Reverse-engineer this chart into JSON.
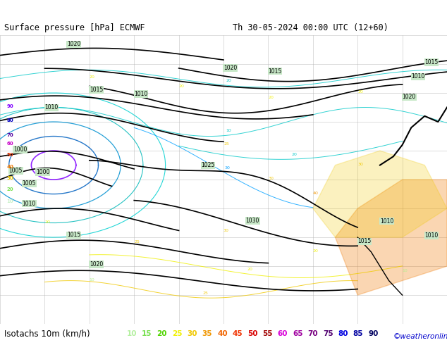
{
  "title_line1": "Surface pressure [hPa] ECMWF",
  "title_date": "Th 30-05-2024 00:00 UTC (12+60)",
  "legend_title": "Isotachs 10m (km/h)",
  "copyright": "©weatheronline.co.uk",
  "isotach_values": [
    "10",
    "15",
    "20",
    "25",
    "30",
    "35",
    "40",
    "45",
    "50",
    "55",
    "60",
    "65",
    "70",
    "75",
    "80",
    "85",
    "90"
  ],
  "isotach_colors": [
    "#b4f0a0",
    "#78e050",
    "#50d400",
    "#f0f000",
    "#f0c800",
    "#f09600",
    "#f06400",
    "#f03200",
    "#d80000",
    "#a00000",
    "#d800d8",
    "#a000a0",
    "#780080",
    "#500070",
    "#0000e0",
    "#0000a0",
    "#000060"
  ],
  "map_bg": "#c8e8c8",
  "title_bar_bg": "#d0d0d0",
  "legend_bar_bg": "#d0d0d0",
  "title_color": "#000000",
  "copyright_color": "#0000cc",
  "legend_title_color": "#000000",
  "figsize": [
    6.34,
    4.9
  ],
  "dpi": 100,
  "title_fontsize": 8.5,
  "legend_fontsize": 8.5,
  "value_fontsize": 7.5
}
